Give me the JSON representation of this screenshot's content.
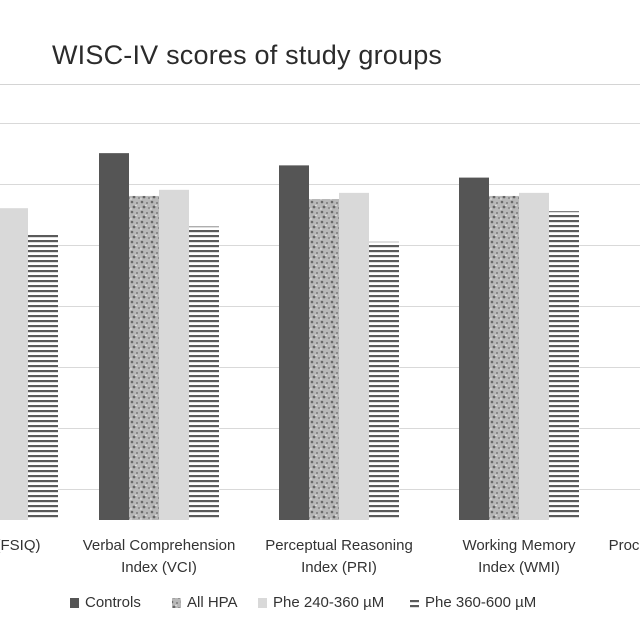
{
  "chart_data": {
    "type": "bar",
    "title": "WISC-IV scores of study groups",
    "categories": [
      "(FSIQ)",
      "Verbal Comprehension Index (VCI)",
      "Perceptual Reasoning Index (PRI)",
      "Working Memory Index (WMI)",
      "Proc"
    ],
    "category_lines": [
      [
        "(FSIQ)"
      ],
      [
        "Verbal Comprehension",
        "Index (VCI)"
      ],
      [
        "Perceptual Reasoning",
        "Index (PRI)"
      ],
      [
        "Working Memory",
        "Index (WMI)"
      ],
      [
        "Proc"
      ]
    ],
    "series": [
      {
        "name": "Controls",
        "values": [
          null,
          105,
          103,
          101,
          null
        ],
        "pattern": "solid-dark"
      },
      {
        "name": "All HPA",
        "values": [
          null,
          98,
          97.5,
          98,
          null
        ],
        "pattern": "speckled"
      },
      {
        "name": "Phe 240-360 µM",
        "values": [
          96,
          99,
          98.5,
          98.5,
          null
        ],
        "pattern": "solid-light"
      },
      {
        "name": "Phe 360-600 µM",
        "values": [
          92,
          93,
          90.5,
          95.5,
          null
        ],
        "pattern": "horizontal-stripes"
      }
    ],
    "ylim": [
      45,
      115
    ],
    "grid_values": [
      50,
      60,
      70,
      80,
      90,
      100,
      110
    ],
    "grid": true,
    "show_y_tick_labels": false,
    "legend_position": "bottom",
    "colors": {
      "controls": "#555555",
      "all_hpa_base": "#b5b5b5",
      "all_hpa_speckle": "#6e6e6e",
      "phe_240_360": "#d9d9d9",
      "phe_360_600": "#5a5a5a",
      "gridline": "#d9d9d9",
      "title_band_border": "#d4d4d4",
      "text": "#333333"
    }
  }
}
